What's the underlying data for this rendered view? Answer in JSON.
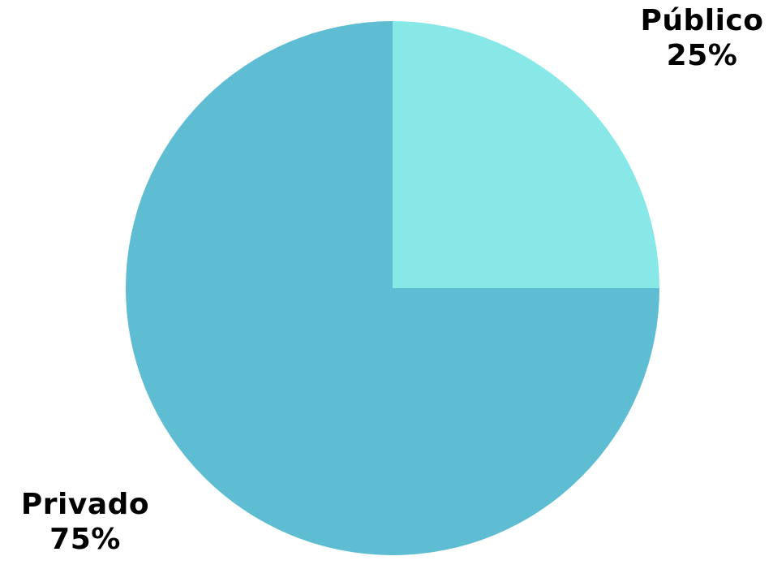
{
  "chart_data": {
    "type": "pie",
    "title": "",
    "categories": [
      "Público",
      "Privado"
    ],
    "values": [
      25,
      75
    ],
    "labels": [
      {
        "name": "Público",
        "value_text": "25%"
      },
      {
        "name": "Privado",
        "value_text": "75%"
      }
    ],
    "colors": [
      "#88E8E8",
      "#5EBCD3"
    ],
    "start_angle_deg": 0,
    "direction": "clockwise",
    "legend": "none"
  }
}
